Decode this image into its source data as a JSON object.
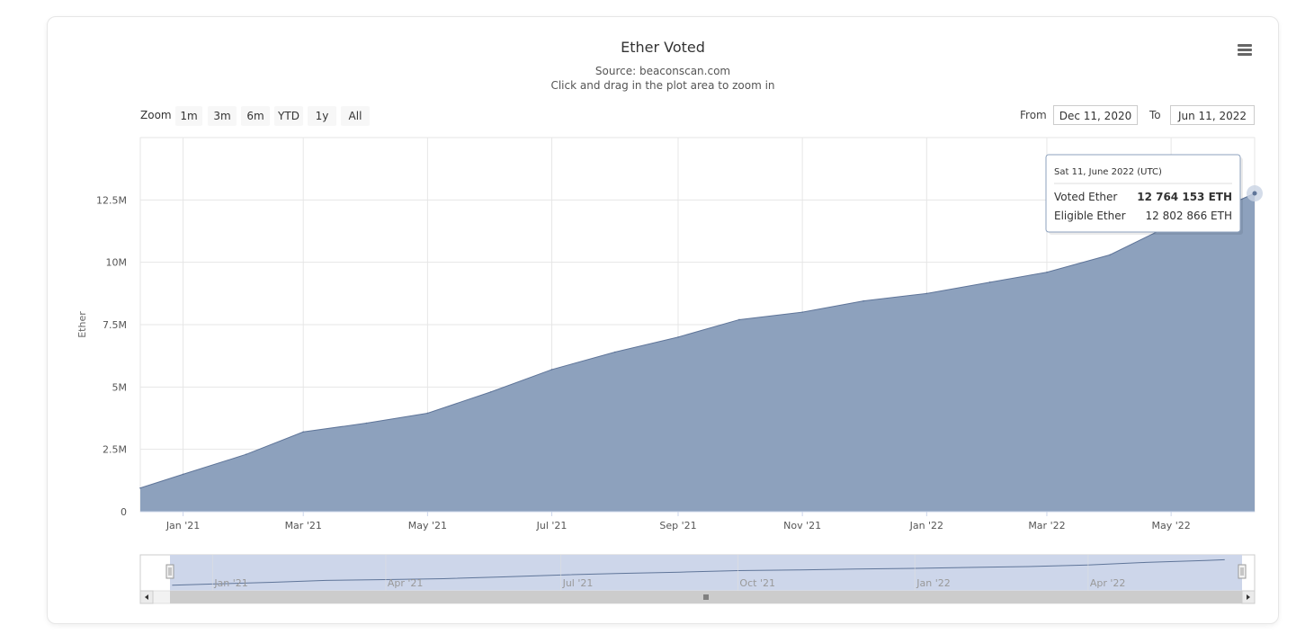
{
  "title": "Ether Voted",
  "subtitle_source": "Source: beaconscan.com",
  "subtitle_hint": "Click and drag in the plot area to zoom in",
  "menu_icon": "hamburger-menu-icon",
  "range_selector": {
    "zoom_label": "Zoom",
    "buttons": [
      "1m",
      "3m",
      "6m",
      "YTD",
      "1y",
      "All"
    ],
    "from_label": "From",
    "from_value": "Dec 11, 2020",
    "to_label": "To",
    "to_value": "Jun 11, 2022"
  },
  "tooltip": {
    "date": "Sat 11, June 2022 (UTC)",
    "rows": [
      {
        "label": "Voted Ether",
        "value": "12 764 153 ETH"
      },
      {
        "label": "Eligible Ether",
        "value": "12 802 866 ETH"
      }
    ]
  },
  "colors": {
    "area_fill": "#8da1bd",
    "area_line": "#5f7599",
    "navigator_fill": "#cdd6ea",
    "grid": "#e6e6e6"
  },
  "chart_data": {
    "type": "area",
    "title": "Ether Voted",
    "ylabel": "Ether",
    "y_ticks": [
      "0",
      "2.5M",
      "5M",
      "7.5M",
      "10M",
      "12.5M"
    ],
    "x_ticks": [
      "Jan '21",
      "Mar '21",
      "May '21",
      "Jul '21",
      "Sep '21",
      "Nov '21",
      "Jan '22",
      "Mar '22",
      "May '22"
    ],
    "navigator_ticks": [
      "Jan '21",
      "Apr '21",
      "Jul '21",
      "Oct '21",
      "Jan '22",
      "Apr '22"
    ],
    "x_range": [
      "2020-12-11",
      "2022-06-11"
    ],
    "ylim": [
      0,
      15000000
    ],
    "grid": true,
    "series": [
      {
        "name": "Voted Ether",
        "x": [
          "2020-12-11",
          "2021-01-01",
          "2021-02-01",
          "2021-03-01",
          "2021-04-01",
          "2021-05-01",
          "2021-06-01",
          "2021-07-01",
          "2021-08-01",
          "2021-09-01",
          "2021-10-01",
          "2021-11-01",
          "2021-12-01",
          "2022-01-01",
          "2022-02-01",
          "2022-03-01",
          "2022-04-01",
          "2022-05-01",
          "2022-06-01",
          "2022-06-11"
        ],
        "values": [
          950000,
          1500000,
          2300000,
          3200000,
          3550000,
          3950000,
          4800000,
          5700000,
          6400000,
          7000000,
          7700000,
          8000000,
          8450000,
          8750000,
          9200000,
          9600000,
          10300000,
          11500000,
          12400000,
          12764153
        ]
      }
    ]
  }
}
